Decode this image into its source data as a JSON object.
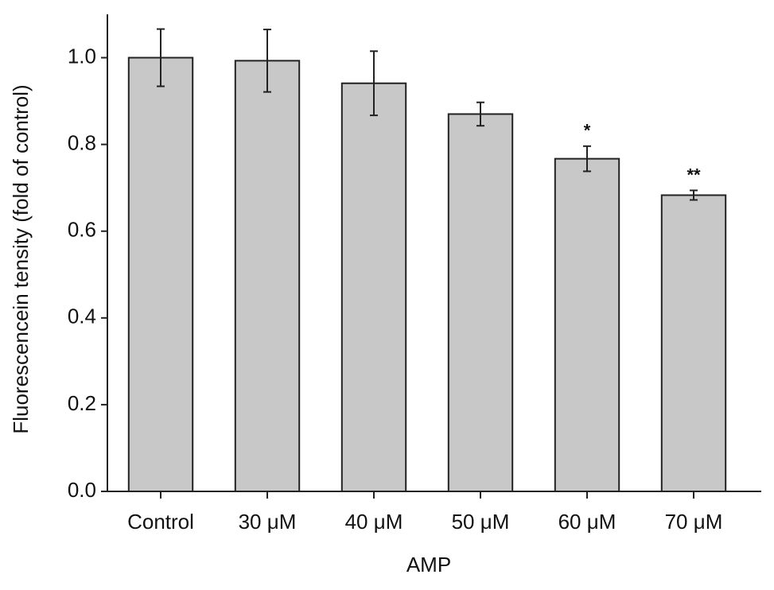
{
  "chart_data": {
    "type": "bar",
    "x_label": "AMP",
    "y_label": "Fluorescencein tensity (fold of control)",
    "categories": [
      "Control",
      "30 μM",
      "40 μM",
      "50 μM",
      "60 μM",
      "70 μM"
    ],
    "values": [
      1.0,
      0.993,
      0.941,
      0.87,
      0.767,
      0.683
    ],
    "errors": [
      0.066,
      0.072,
      0.074,
      0.027,
      0.029,
      0.011
    ],
    "value_annotations": [
      null,
      null,
      null,
      null,
      "*",
      "**"
    ],
    "color": "#c8c8c8",
    "ylim": [
      0,
      1.1
    ],
    "yticks": [
      {
        "value": 0,
        "label": "0.0"
      },
      {
        "value": 0.2,
        "label": "0.2"
      },
      {
        "value": 0.4,
        "label": "0.4"
      },
      {
        "value": 0.6,
        "label": "0.6"
      },
      {
        "value": 0.8,
        "label": "0.8"
      },
      {
        "value": 1.0,
        "label": "1.0"
      }
    ],
    "grid": false
  }
}
